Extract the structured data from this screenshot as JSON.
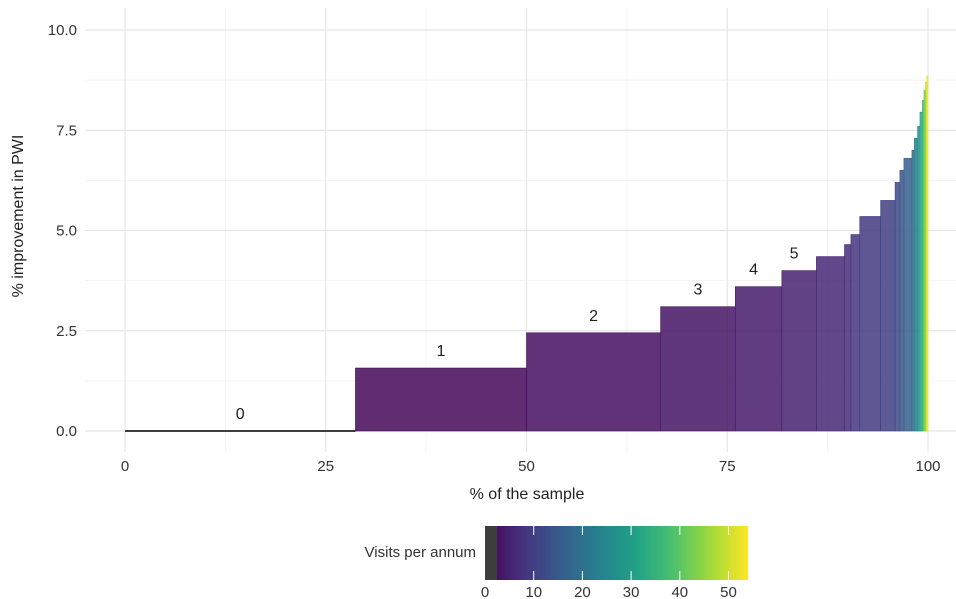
{
  "chart_data": {
    "type": "bar",
    "xlabel": "% of the sample",
    "ylabel": "% improvement in PWI",
    "xlim": [
      0,
      100
    ],
    "ylim": [
      0,
      10
    ],
    "x_ticks": [
      0,
      25,
      50,
      75,
      100
    ],
    "y_ticks": [
      0.0,
      2.5,
      5.0,
      7.5,
      10.0
    ],
    "y_tick_labels": [
      "0.0",
      "2.5",
      "5.0",
      "7.5",
      "10.0"
    ],
    "grid": true,
    "legend": {
      "title": "Visits per annum",
      "placement": "bottom",
      "scale_min": 0,
      "scale_max": 54,
      "ticks": [
        0,
        10,
        20,
        30,
        40,
        50
      ],
      "colors": [
        "#440154",
        "#46327e",
        "#365c8d",
        "#277f8e",
        "#1fa187",
        "#4ac16d",
        "#a0da39",
        "#fde725"
      ]
    },
    "bars": [
      {
        "x0": 0.0,
        "x1": 28.7,
        "value": 0.0,
        "visits": 0,
        "label": "0"
      },
      {
        "x0": 28.7,
        "x1": 50.0,
        "value": 1.57,
        "visits": 1,
        "label": "1"
      },
      {
        "x0": 50.0,
        "x1": 66.7,
        "value": 2.45,
        "visits": 2,
        "label": "2"
      },
      {
        "x0": 66.7,
        "x1": 76.0,
        "value": 3.1,
        "visits": 3,
        "label": "3"
      },
      {
        "x0": 76.0,
        "x1": 81.8,
        "value": 3.6,
        "visits": 4,
        "label": "4"
      },
      {
        "x0": 81.8,
        "x1": 86.1,
        "value": 4.0,
        "visits": 5,
        "label": "5"
      },
      {
        "x0": 86.1,
        "x1": 89.6,
        "value": 4.35,
        "visits": 6
      },
      {
        "x0": 89.6,
        "x1": 90.4,
        "value": 4.65,
        "visits": 7
      },
      {
        "x0": 90.4,
        "x1": 91.5,
        "value": 4.9,
        "visits": 8
      },
      {
        "x0": 91.5,
        "x1": 94.1,
        "value": 5.35,
        "visits": 9
      },
      {
        "x0": 94.1,
        "x1": 95.9,
        "value": 5.75,
        "visits": 10
      },
      {
        "x0": 95.9,
        "x1": 96.5,
        "value": 6.2,
        "visits": 12
      },
      {
        "x0": 96.5,
        "x1": 97.0,
        "value": 6.5,
        "visits": 14
      },
      {
        "x0": 97.0,
        "x1": 98.0,
        "value": 6.8,
        "visits": 16
      },
      {
        "x0": 98.0,
        "x1": 98.3,
        "value": 7.0,
        "visits": 19
      },
      {
        "x0": 98.3,
        "x1": 98.7,
        "value": 7.3,
        "visits": 23
      },
      {
        "x0": 98.7,
        "x1": 99.0,
        "value": 7.6,
        "visits": 27
      },
      {
        "x0": 99.0,
        "x1": 99.3,
        "value": 7.95,
        "visits": 32
      },
      {
        "x0": 99.3,
        "x1": 99.5,
        "value": 8.25,
        "visits": 37
      },
      {
        "x0": 99.5,
        "x1": 99.7,
        "value": 8.5,
        "visits": 42
      },
      {
        "x0": 99.7,
        "x1": 99.85,
        "value": 8.7,
        "visits": 47
      },
      {
        "x0": 99.85,
        "x1": 100.0,
        "value": 8.85,
        "visits": 53
      }
    ]
  }
}
